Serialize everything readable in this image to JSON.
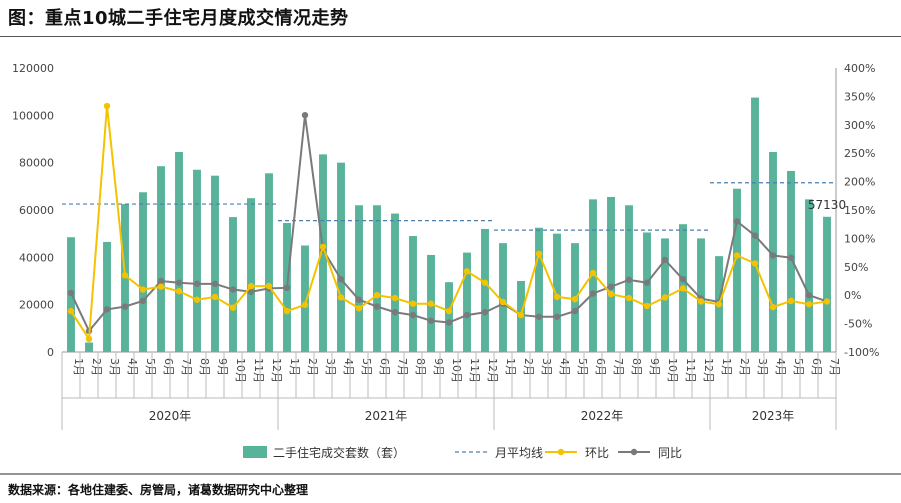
{
  "title": "图：重点10城二手住宅月度成交情况走势",
  "source": "数据来源：各地住建委、房管局，诸葛数据研究中心整理",
  "chart_data": {
    "type": "bar",
    "categories": [
      "1月",
      "2月",
      "3月",
      "4月",
      "5月",
      "6月",
      "7月",
      "8月",
      "9月",
      "10月",
      "11月",
      "12月",
      "1月",
      "2月",
      "3月",
      "4月",
      "5月",
      "6月",
      "7月",
      "8月",
      "9月",
      "10月",
      "11月",
      "12月",
      "1月",
      "2月",
      "3月",
      "4月",
      "5月",
      "6月",
      "7月",
      "8月",
      "9月",
      "10月",
      "11月",
      "12月",
      "1月",
      "2月",
      "3月",
      "4月",
      "5月",
      "6月",
      "7月"
    ],
    "year_groups": [
      {
        "label": "2020年",
        "start": 0,
        "count": 12
      },
      {
        "label": "2021年",
        "start": 12,
        "count": 12
      },
      {
        "label": "2022年",
        "start": 24,
        "count": 12
      },
      {
        "label": "2023年",
        "start": 36,
        "count": 7
      }
    ],
    "y_left": {
      "min": 0,
      "max": 120000,
      "ticks": [
        "0",
        "20000",
        "40000",
        "60000",
        "80000",
        "100000",
        "120000"
      ]
    },
    "y_right": {
      "min": -100,
      "max": 400,
      "ticks": [
        "-100%",
        "-50%",
        "0%",
        "50%",
        "100%",
        "150%",
        "200%",
        "250%",
        "300%",
        "350%",
        "400%"
      ]
    },
    "series": [
      {
        "name": "二手住宅成交套数（套）",
        "type": "bar",
        "axis": "left",
        "color": "#58b39a",
        "values": [
          48500,
          4000,
          46500,
          62500,
          67500,
          78500,
          84500,
          77000,
          74500,
          57000,
          65000,
          75500,
          54500,
          45000,
          83500,
          80000,
          62000,
          62000,
          58500,
          49000,
          41000,
          29500,
          42000,
          52000,
          46000,
          30000,
          52500,
          50000,
          46000,
          64500,
          65500,
          62000,
          50500,
          48000,
          54000,
          48000,
          40500,
          69000,
          107500,
          84500,
          76500,
          64500,
          57130
        ]
      },
      {
        "name": "月平均线",
        "type": "line",
        "axis": "left",
        "color": "#4a7fb0",
        "dashed": true,
        "segments": [
          {
            "start": 0,
            "end": 11,
            "value": 62500
          },
          {
            "start": 12,
            "end": 23,
            "value": 55500
          },
          {
            "start": 24,
            "end": 35,
            "value": 51500
          },
          {
            "start": 36,
            "end": 42,
            "value": 71500
          }
        ]
      },
      {
        "name": "环比",
        "type": "line",
        "axis": "right",
        "color": "#f5c200",
        "values": [
          -28,
          -77,
          333,
          35,
          10,
          15,
          7,
          -8,
          -3,
          -22,
          16,
          16,
          -28,
          -17,
          85,
          -4,
          -23,
          0,
          -5,
          -15,
          -15,
          -28,
          42,
          22,
          -12,
          -35,
          73,
          -3,
          -7,
          39,
          2,
          -5,
          -19,
          -4,
          12,
          -11,
          -16,
          70,
          56,
          -21,
          -10,
          -16,
          -11
        ]
      },
      {
        "name": "同比",
        "type": "line",
        "axis": "right",
        "color": "#7a7a7a",
        "values": [
          4,
          -63,
          -25,
          -20,
          -10,
          25,
          22,
          20,
          20,
          10,
          6,
          12,
          13,
          317,
          80,
          28,
          -8,
          -20,
          -30,
          -35,
          -45,
          -48,
          -35,
          -30,
          -15,
          -35,
          -38,
          -38,
          -28,
          3,
          15,
          27,
          22,
          62,
          28,
          -6,
          -12,
          130,
          105,
          70,
          66,
          0,
          -11
        ]
      }
    ],
    "data_labels": [
      {
        "series": 0,
        "index": 42,
        "text": "57130"
      }
    ],
    "legend": "bottom",
    "grid": false
  }
}
